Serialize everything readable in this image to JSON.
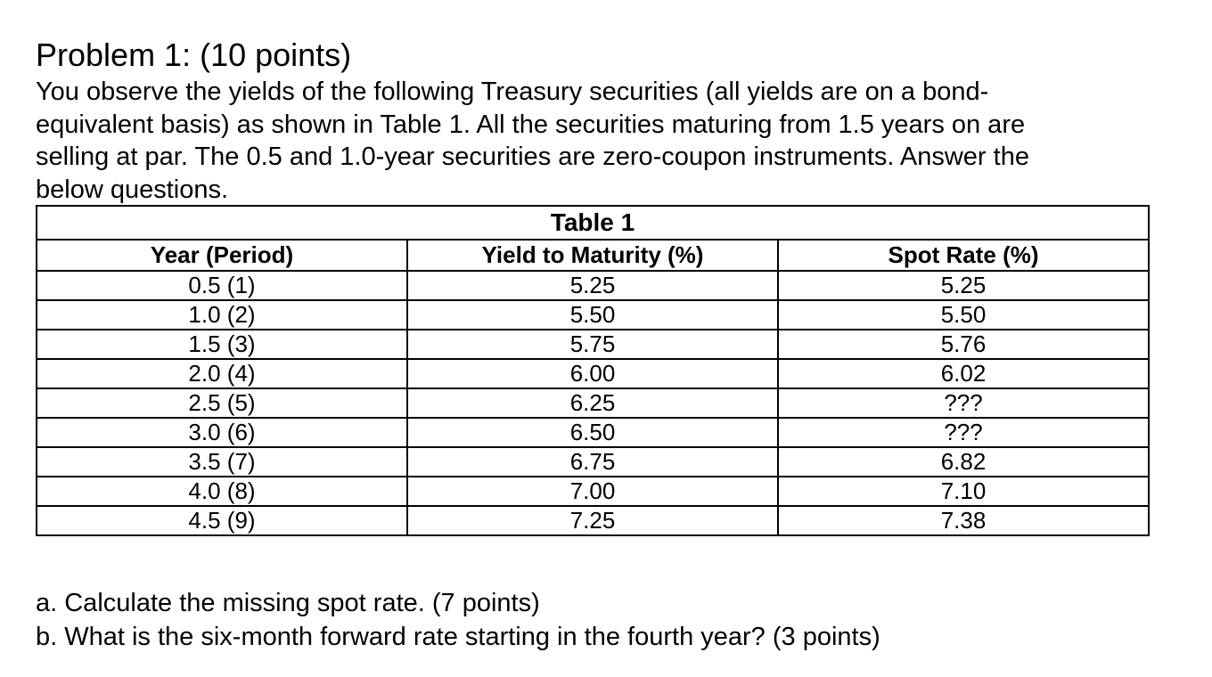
{
  "problem": {
    "title": "Problem 1: (10 points)",
    "lines": [
      "You observe the yields of the following Treasury securities (all yields are on a bond-",
      "equivalent basis) as shown in Table 1. All the securities maturing from 1.5 years on are",
      "selling at par. The 0.5 and 1.0-year securities are zero-coupon instruments. Answer the",
      "below questions."
    ]
  },
  "table": {
    "caption": "Table 1",
    "headers": [
      "Year (Period)",
      "Yield to Maturity (%)",
      "Spot Rate (%)"
    ],
    "rows": [
      [
        "0.5 (1)",
        "5.25",
        "5.25"
      ],
      [
        "1.0 (2)",
        "5.50",
        "5.50"
      ],
      [
        "1.5 (3)",
        "5.75",
        "5.76"
      ],
      [
        "2.0 (4)",
        "6.00",
        "6.02"
      ],
      [
        "2.5 (5)",
        "6.25",
        "???"
      ],
      [
        "3.0 (6)",
        "6.50",
        "???"
      ],
      [
        "3.5 (7)",
        "6.75",
        "6.82"
      ],
      [
        "4.0 (8)",
        "7.00",
        "7.10"
      ],
      [
        "4.5 (9)",
        "7.25",
        "7.38"
      ]
    ]
  },
  "questions": [
    "a. Calculate the missing spot rate. (7 points)",
    "b. What is the six-month forward rate starting in the fourth year? (3 points)"
  ]
}
